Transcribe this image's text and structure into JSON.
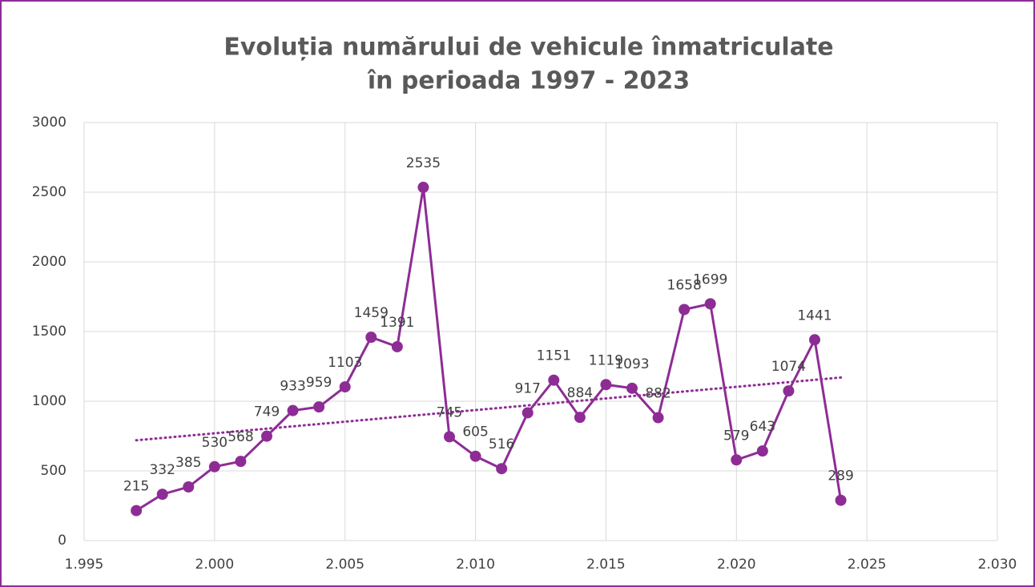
{
  "chart_data": {
    "type": "line",
    "title": [
      "Evoluția numărului de vehicule înmatriculate",
      "în perioada 1997 - 2023"
    ],
    "x": [
      1997,
      1998,
      1999,
      2000,
      2001,
      2002,
      2003,
      2004,
      2005,
      2006,
      2007,
      2008,
      2009,
      2010,
      2011,
      2012,
      2013,
      2014,
      2015,
      2016,
      2017,
      2018,
      2019,
      2020,
      2021,
      2022,
      2023,
      2024
    ],
    "series": [
      {
        "color": "#8e2c96",
        "values": [
          215,
          332,
          385,
          530,
          568,
          749,
          933,
          959,
          1103,
          1459,
          1391,
          2535,
          745,
          605,
          516,
          917,
          1151,
          884,
          1119,
          1093,
          882,
          1658,
          1699,
          579,
          643,
          1074,
          1441,
          289
        ]
      }
    ],
    "xlim": [
      1995,
      2030
    ],
    "xticks": [
      {
        "value": 1995,
        "label": "1.995"
      },
      {
        "value": 2000,
        "label": "2.000"
      },
      {
        "value": 2005,
        "label": "2.005"
      },
      {
        "value": 2010,
        "label": "2.010"
      },
      {
        "value": 2015,
        "label": "2.015"
      },
      {
        "value": 2020,
        "label": "2.020"
      },
      {
        "value": 2025,
        "label": "2.025"
      },
      {
        "value": 2030,
        "label": "2.030"
      }
    ],
    "ylim": [
      0,
      3000
    ],
    "yticks": [
      0,
      500,
      1000,
      1500,
      2000,
      2500,
      3000
    ],
    "grid": true,
    "trendline": "linear",
    "data_labels": true
  }
}
